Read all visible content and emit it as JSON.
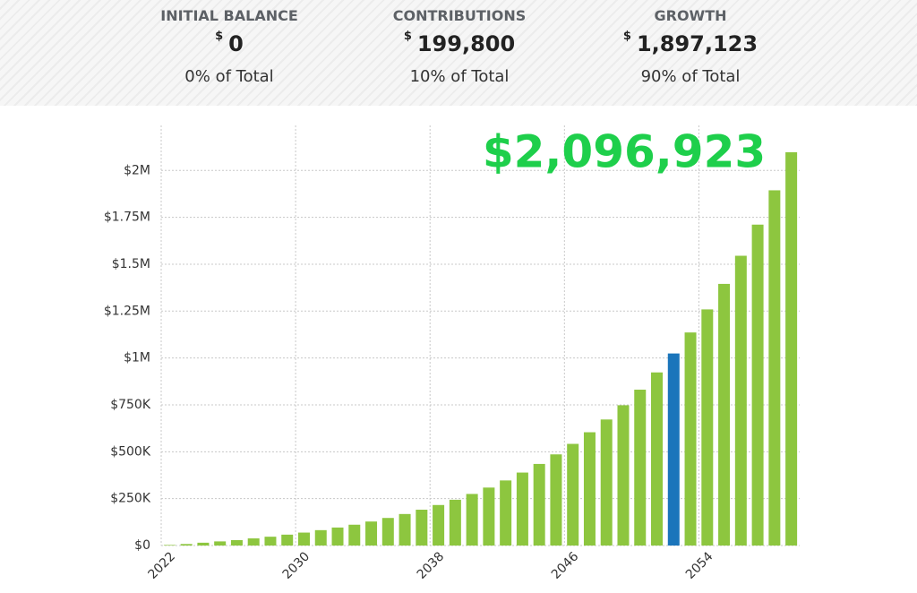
{
  "summary": [
    {
      "label": "INITIAL BALANCE",
      "currency": "$",
      "amount": "0",
      "share": "0% of Total"
    },
    {
      "label": "CONTRIBUTIONS",
      "currency": "$",
      "amount": "199,800",
      "share": "10% of Total"
    },
    {
      "label": "GROWTH",
      "currency": "$",
      "amount": "1,897,123",
      "share": "90% of Total"
    }
  ],
  "chart_data": {
    "type": "bar",
    "annotation": "$2,096,923",
    "annotation_color": "#1ecf4b",
    "categories": [
      "2022",
      null,
      null,
      null,
      null,
      null,
      null,
      null,
      "2030",
      null,
      null,
      null,
      null,
      null,
      null,
      null,
      "2038",
      null,
      null,
      null,
      null,
      null,
      null,
      null,
      "2046",
      null,
      null,
      null,
      null,
      null,
      null,
      null,
      "2054",
      null,
      null,
      null,
      null,
      null
    ],
    "values": [
      3000,
      8000,
      15000,
      22000,
      29000,
      38000,
      47000,
      58000,
      69000,
      82000,
      96000,
      111000,
      128000,
      147000,
      168000,
      191000,
      216000,
      244000,
      275000,
      309000,
      347000,
      389000,
      435000,
      486000,
      542000,
      604000,
      672000,
      748000,
      831000,
      923000,
      1024000,
      1136000,
      1259000,
      1395000,
      1545000,
      1711000,
      1894000,
      2096923
    ],
    "bar_colors": [
      "#8dc63f",
      "#8dc63f",
      "#8dc63f",
      "#8dc63f",
      "#8dc63f",
      "#8dc63f",
      "#8dc63f",
      "#8dc63f",
      "#8dc63f",
      "#8dc63f",
      "#8dc63f",
      "#8dc63f",
      "#8dc63f",
      "#8dc63f",
      "#8dc63f",
      "#8dc63f",
      "#8dc63f",
      "#8dc63f",
      "#8dc63f",
      "#8dc63f",
      "#8dc63f",
      "#8dc63f",
      "#8dc63f",
      "#8dc63f",
      "#8dc63f",
      "#8dc63f",
      "#8dc63f",
      "#8dc63f",
      "#8dc63f",
      "#8dc63f",
      "#1b75bb",
      "#8dc63f",
      "#8dc63f",
      "#8dc63f",
      "#8dc63f",
      "#8dc63f",
      "#8dc63f",
      "#8dc63f"
    ],
    "ylim": [
      0,
      2240000
    ],
    "yticks": [
      {
        "value": 0,
        "label": "$0"
      },
      {
        "value": 250000,
        "label": "$250K"
      },
      {
        "value": 500000,
        "label": "$500K"
      },
      {
        "value": 750000,
        "label": "$750K"
      },
      {
        "value": 1000000,
        "label": "$1M"
      },
      {
        "value": 1250000,
        "label": "$1.25M"
      },
      {
        "value": 1500000,
        "label": "$1.5M"
      },
      {
        "value": 1750000,
        "label": "$1.75M"
      },
      {
        "value": 2000000,
        "label": "$2M"
      }
    ],
    "grid": true
  }
}
